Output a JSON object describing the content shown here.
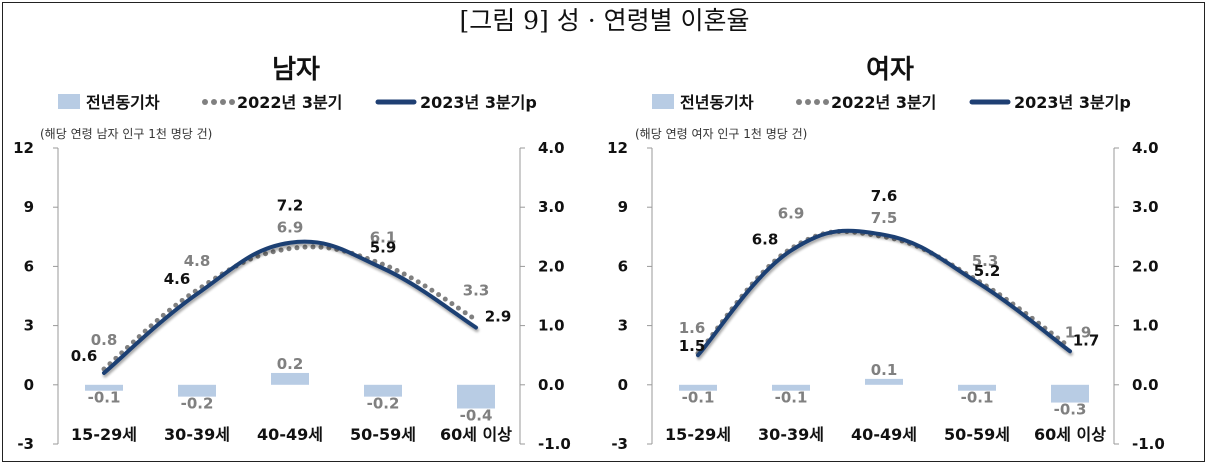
{
  "figure_title": "[그림 9] 성 · 연령별 이혼율",
  "colors": {
    "bar": "#b8cce4",
    "line2022": "#808080",
    "line2023": "#1f3f73"
  },
  "chart_data": [
    {
      "type": "bar+line",
      "title": "남자",
      "unit_note": "(해당 연령 남자 인구 1천 명당 건)",
      "legend": [
        "전년동기차",
        "2022년 3분기",
        "2023년 3분기p"
      ],
      "legend_placement": "top",
      "categories": [
        "15-29세",
        "30-39세",
        "40-49세",
        "50-59세",
        "60세 이상"
      ],
      "series": [
        {
          "name": "전년동기차",
          "axis": "right",
          "kind": "bar",
          "values": [
            -0.1,
            -0.2,
            0.2,
            -0.2,
            -0.4
          ],
          "labels": [
            "-0.1",
            "-0.2",
            "0.2",
            "-0.2",
            "-0.4"
          ]
        },
        {
          "name": "2022년 3분기",
          "axis": "left",
          "kind": "line-dotted",
          "values": [
            0.8,
            4.8,
            6.9,
            6.1,
            3.3
          ],
          "labels": [
            "0.8",
            "4.8",
            "6.9",
            "6.1",
            "3.3"
          ]
        },
        {
          "name": "2023년 3분기p",
          "axis": "left",
          "kind": "line",
          "values": [
            0.6,
            4.6,
            7.2,
            5.9,
            2.9
          ],
          "labels": [
            "0.6",
            "4.6",
            "7.2",
            "5.9",
            "2.9"
          ]
        }
      ],
      "ylim_left": [
        -3,
        12
      ],
      "yticks_left": [
        "12",
        "9",
        "6",
        "3",
        "0",
        "-3"
      ],
      "ylim_right": [
        -1,
        4
      ],
      "yticks_right": [
        "4.0",
        "3.0",
        "2.0",
        "1.0",
        "0.0",
        "-1.0"
      ],
      "grid": false
    },
    {
      "type": "bar+line",
      "title": "여자",
      "unit_note": "(해당 연령 여자 인구 1천 명당 건)",
      "legend": [
        "전년동기차",
        "2022년 3분기",
        "2023년 3분기p"
      ],
      "legend_placement": "top",
      "categories": [
        "15-29세",
        "30-39세",
        "40-49세",
        "50-59세",
        "60세 이상"
      ],
      "series": [
        {
          "name": "전년동기차",
          "axis": "right",
          "kind": "bar",
          "values": [
            -0.1,
            -0.1,
            0.1,
            -0.1,
            -0.3
          ],
          "labels": [
            "-0.1",
            "-0.1",
            "0.1",
            "-0.1",
            "-0.3"
          ]
        },
        {
          "name": "2022년 3분기",
          "axis": "left",
          "kind": "line-dotted",
          "values": [
            1.6,
            6.9,
            7.5,
            5.3,
            1.9
          ],
          "labels": [
            "1.6",
            "6.9",
            "7.5",
            "5.3",
            "1.9"
          ]
        },
        {
          "name": "2023년 3분기p",
          "axis": "left",
          "kind": "line",
          "values": [
            1.5,
            6.8,
            7.6,
            5.2,
            1.7
          ],
          "labels": [
            "1.5",
            "6.8",
            "7.6",
            "5.2",
            "1.7"
          ]
        }
      ],
      "ylim_left": [
        -3,
        12
      ],
      "yticks_left": [
        "12",
        "9",
        "6",
        "3",
        "0",
        "-3"
      ],
      "ylim_right": [
        -1,
        4
      ],
      "yticks_right": [
        "4.0",
        "3.0",
        "2.0",
        "1.0",
        "0.0",
        "-1.0"
      ],
      "grid": false
    }
  ]
}
